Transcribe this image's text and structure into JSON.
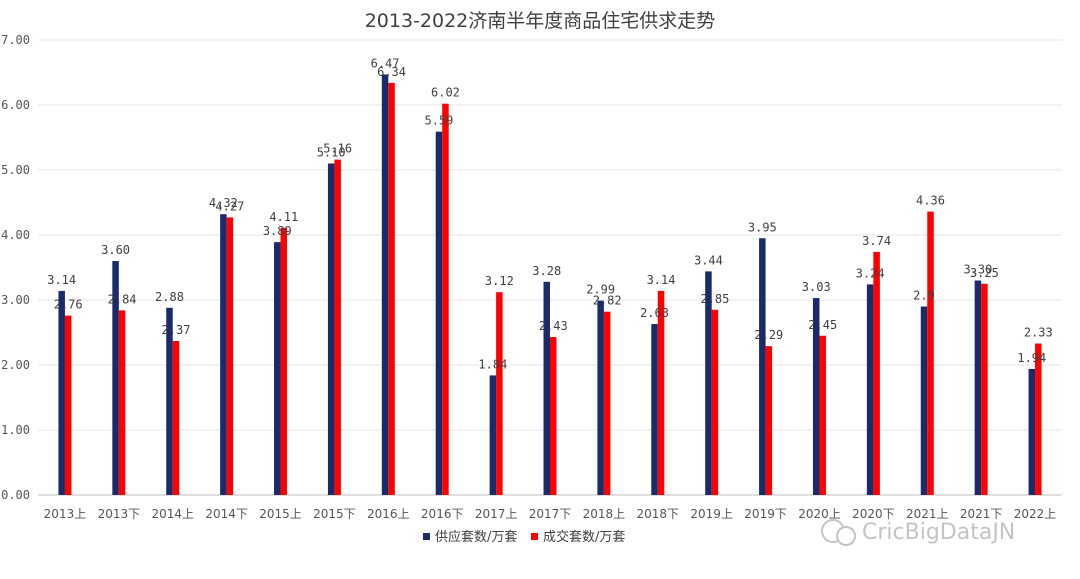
{
  "chart_data": {
    "type": "bar",
    "title": "2013-2022济南半年度商品住宅供求走势",
    "categories": [
      "2013上",
      "2013下",
      "2014上",
      "2014下",
      "2015上",
      "2015下",
      "2016上",
      "2016下",
      "2017上",
      "2017下",
      "2018上",
      "2018下",
      "2019上",
      "2019下",
      "2020上",
      "2020下",
      "2021上",
      "2021下",
      "2022上"
    ],
    "series": [
      {
        "name": "供应套数/万套",
        "color": "#1a2b6b",
        "values": [
          3.14,
          3.6,
          2.88,
          4.32,
          3.89,
          5.1,
          6.47,
          5.59,
          1.84,
          3.28,
          2.99,
          2.63,
          3.44,
          3.95,
          3.03,
          3.24,
          2.9,
          3.3,
          1.94
        ],
        "labels": [
          "3.14",
          "3.60",
          "2.88",
          "4.32",
          "3.89",
          "5.10",
          "6.47",
          "5.59",
          "1.84",
          "3.28",
          "2.99",
          "2.63",
          "3.44",
          "3.95",
          "3.03",
          "3.24",
          "2.9",
          "3.30",
          "1.94"
        ]
      },
      {
        "name": "成交套数/万套",
        "color": "#ff0000",
        "values": [
          2.76,
          2.84,
          2.37,
          4.27,
          4.11,
          5.16,
          6.34,
          6.02,
          3.12,
          2.43,
          2.82,
          3.14,
          2.85,
          2.29,
          2.45,
          3.74,
          4.36,
          3.25,
          2.33
        ],
        "labels": [
          "2.76",
          "2.84",
          "2.37",
          "4.27",
          "4.11",
          "5.16",
          "6.34",
          "6.02",
          "3.12",
          "2.43",
          "2.82",
          "3.14",
          "2.85",
          "2.29",
          "2.45",
          "3.74",
          "4.36",
          "3.25",
          "2.33"
        ]
      }
    ],
    "yticks": [
      "0.00",
      "1.00",
      "2.00",
      "3.00",
      "4.00",
      "5.00",
      "6.00",
      "7.00"
    ],
    "ylim": [
      0,
      7
    ],
    "grid": true,
    "legend_position": "bottom-center",
    "xlabel": "",
    "ylabel": ""
  },
  "watermark": "CricBigDataJN"
}
